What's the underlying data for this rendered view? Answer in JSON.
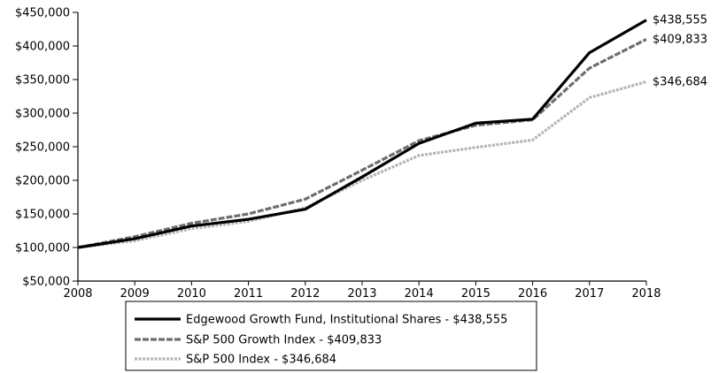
{
  "chart_data": {
    "type": "line",
    "x": [
      "2008",
      "2009",
      "2010",
      "2011",
      "2012",
      "2013",
      "2014",
      "2015",
      "2016",
      "2017",
      "2018"
    ],
    "ylim": [
      50000,
      450000
    ],
    "yticks": [
      50000,
      100000,
      150000,
      200000,
      250000,
      300000,
      350000,
      400000,
      450000
    ],
    "ytick_labels": [
      "$50,000",
      "$100,000",
      "$150,000",
      "$200,000",
      "$250,000",
      "$300,000",
      "$350,000",
      "$400,000",
      "$450,000"
    ],
    "grid": false,
    "legend_position": "bottom",
    "series": [
      {
        "name": "Edgewood Growth Fund, Institutional Shares - $438,555",
        "end_label": "$438,555",
        "color": "#000000",
        "style": "solid",
        "values": [
          100000,
          113000,
          132000,
          142000,
          157000,
          205000,
          255000,
          285000,
          291000,
          390000,
          438555
        ]
      },
      {
        "name": "S&P 500 Growth Index - $409,833",
        "end_label": "$409,833",
        "color": "#6e6e6e",
        "style": "dashed",
        "values": [
          100000,
          116000,
          136000,
          150000,
          172000,
          215000,
          259000,
          282000,
          290000,
          367000,
          409833
        ]
      },
      {
        "name": "S&P 500 Index - $346,684",
        "end_label": "$346,684",
        "color": "#b4b4b4",
        "style": "dotted",
        "values": [
          100000,
          110000,
          128000,
          139000,
          159000,
          200000,
          237000,
          249000,
          260000,
          323000,
          346684
        ]
      }
    ]
  }
}
